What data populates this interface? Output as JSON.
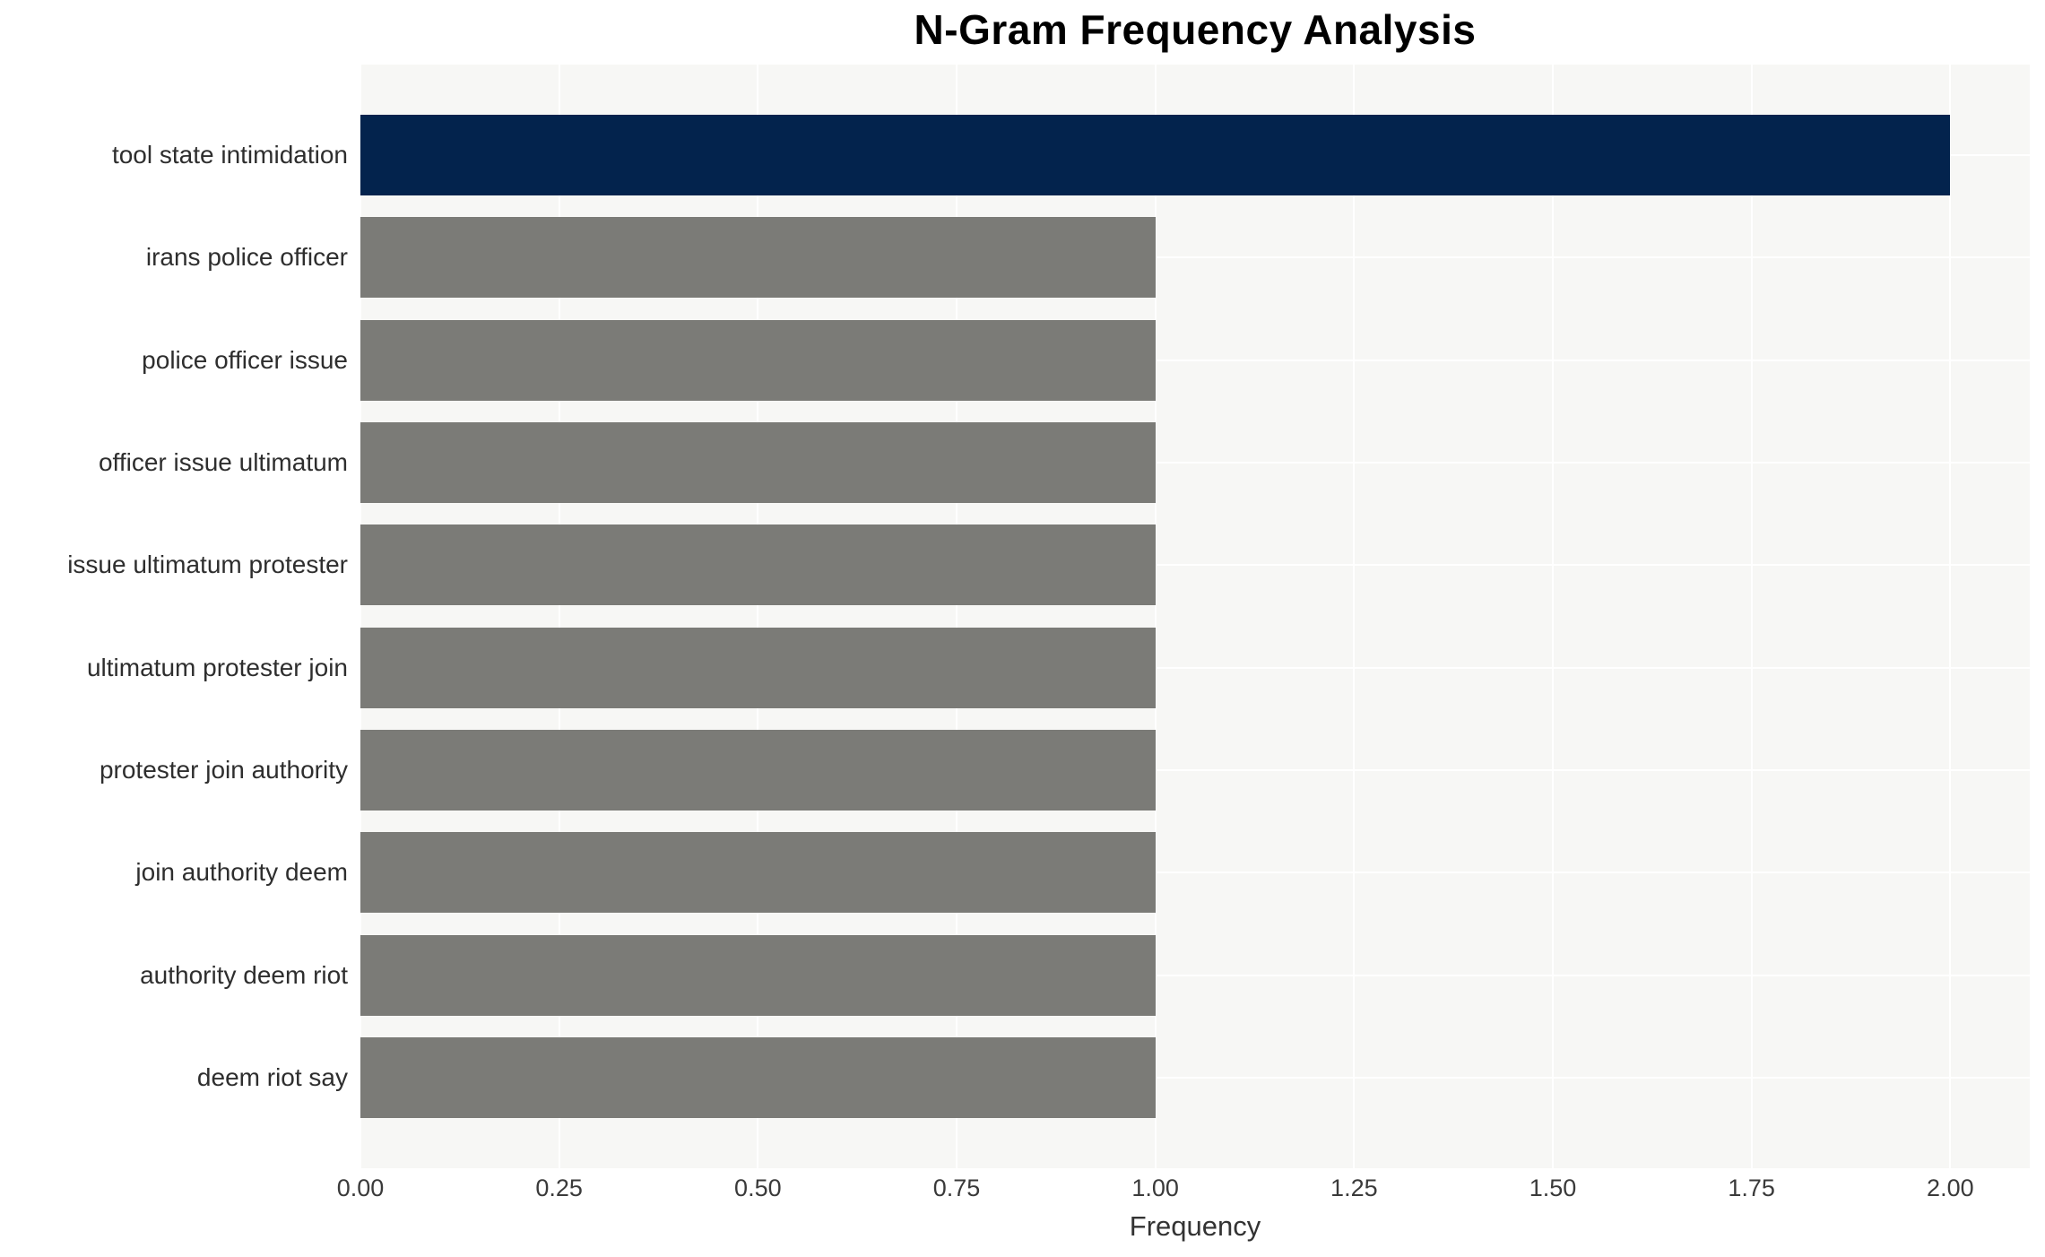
{
  "title": "N-Gram Frequency Analysis",
  "xlabel": "Frequency",
  "chart_data": {
    "type": "bar",
    "orientation": "horizontal",
    "title": "N-Gram Frequency Analysis",
    "xlabel": "Frequency",
    "ylabel": "",
    "categories": [
      "tool state intimidation",
      "irans police officer",
      "police officer issue",
      "officer issue ultimatum",
      "issue ultimatum protester",
      "ultimatum protester join",
      "protester join authority",
      "join authority deem",
      "authority deem riot",
      "deem riot say"
    ],
    "values": [
      2,
      1,
      1,
      1,
      1,
      1,
      1,
      1,
      1,
      1
    ],
    "xlim": [
      0,
      2.1
    ],
    "xticks": [
      0,
      0.25,
      0.5,
      0.75,
      1.0,
      1.25,
      1.5,
      1.75,
      2.0
    ],
    "xtick_labels": [
      "0.00",
      "0.25",
      "0.50",
      "0.75",
      "1.00",
      "1.25",
      "1.50",
      "1.75",
      "2.00"
    ],
    "grid": true,
    "legend": false,
    "colors": {
      "highlight_bar": "#03234D",
      "default_bar": "#7B7B77",
      "plot_background": "#F7F7F5",
      "grid_line": "#FFFFFF",
      "figure_background": "#FFFFFF",
      "title_color": "#000000",
      "ytick_color": "#2E2E2E",
      "xtick_color": "#3A3A3A",
      "xlabel_color": "#333333"
    },
    "bar_colors": [
      "#03234D",
      "#7B7B77",
      "#7B7B77",
      "#7B7B77",
      "#7B7B77",
      "#7B7B77",
      "#7B7B77",
      "#7B7B77",
      "#7B7B77",
      "#7B7B77"
    ]
  }
}
